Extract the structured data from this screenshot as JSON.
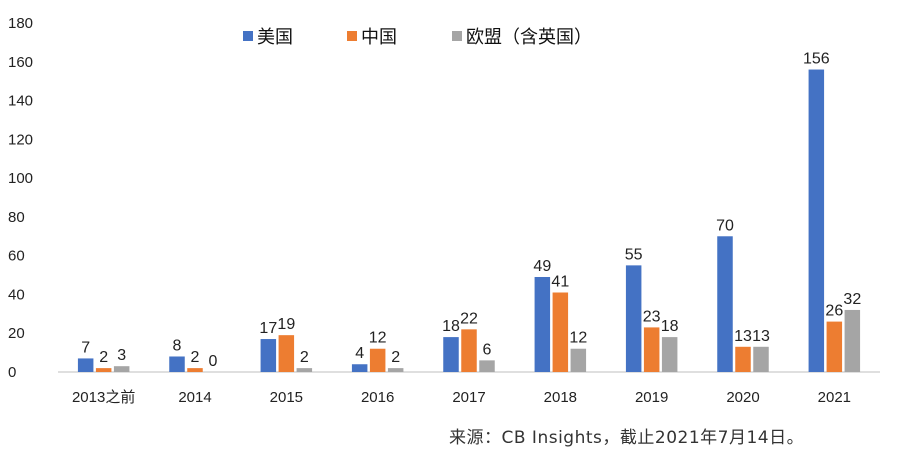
{
  "chart_data": {
    "type": "bar",
    "categories": [
      "2013之前",
      "2014",
      "2015",
      "2016",
      "2017",
      "2018",
      "2019",
      "2020",
      "2021"
    ],
    "series": [
      {
        "name": "美国",
        "color": "#4472C4",
        "values": [
          7,
          8,
          17,
          4,
          18,
          49,
          55,
          70,
          156
        ]
      },
      {
        "name": "中国",
        "color": "#ED7D31",
        "values": [
          2,
          2,
          19,
          12,
          22,
          41,
          23,
          13,
          26
        ]
      },
      {
        "name": "欧盟（含英国）",
        "color": "#A5A5A5",
        "values": [
          3,
          0,
          2,
          2,
          6,
          12,
          18,
          13,
          32
        ]
      }
    ],
    "ylim": [
      0,
      180
    ],
    "yticks": [
      "0",
      "20",
      "40",
      "60",
      "80",
      "100",
      "120",
      "140",
      "160",
      "180"
    ],
    "legend_position": "top-center",
    "grid": false
  },
  "source": "来源：CB Insights，截止2021年7月14日。"
}
